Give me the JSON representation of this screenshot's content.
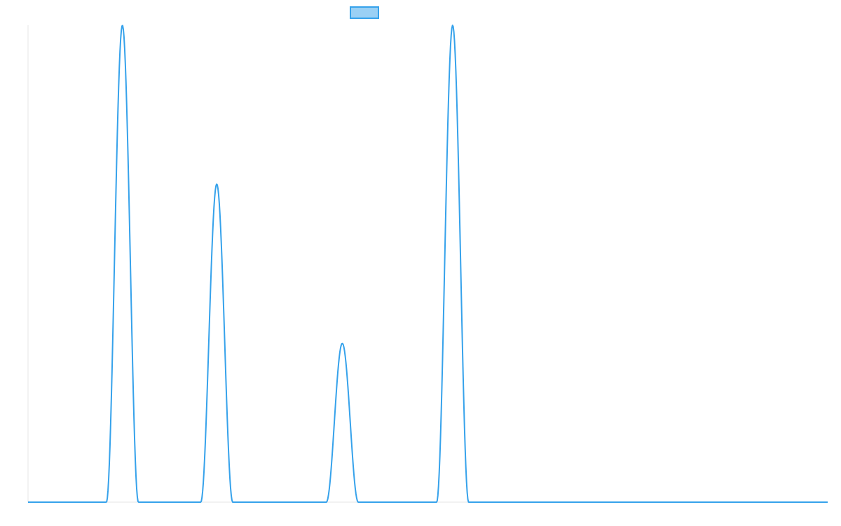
{
  "chart_data": {
    "type": "line",
    "title": "",
    "xlabel": "",
    "ylabel": "",
    "grid": false,
    "legend_position": "top",
    "xlim": [
      0,
      100
    ],
    "ylim": [
      0,
      1
    ],
    "peaks": [
      {
        "center": 11.8,
        "half_width": 2.0,
        "height": 1.0
      },
      {
        "center": 23.6,
        "half_width": 2.0,
        "height": 0.667
      },
      {
        "center": 39.3,
        "half_width": 2.0,
        "height": 0.333
      },
      {
        "center": 53.1,
        "half_width": 2.0,
        "height": 1.0
      }
    ],
    "series": [
      {
        "name": "",
        "color": "#36a2eb",
        "fill_color": "#9ad0f5"
      }
    ]
  }
}
